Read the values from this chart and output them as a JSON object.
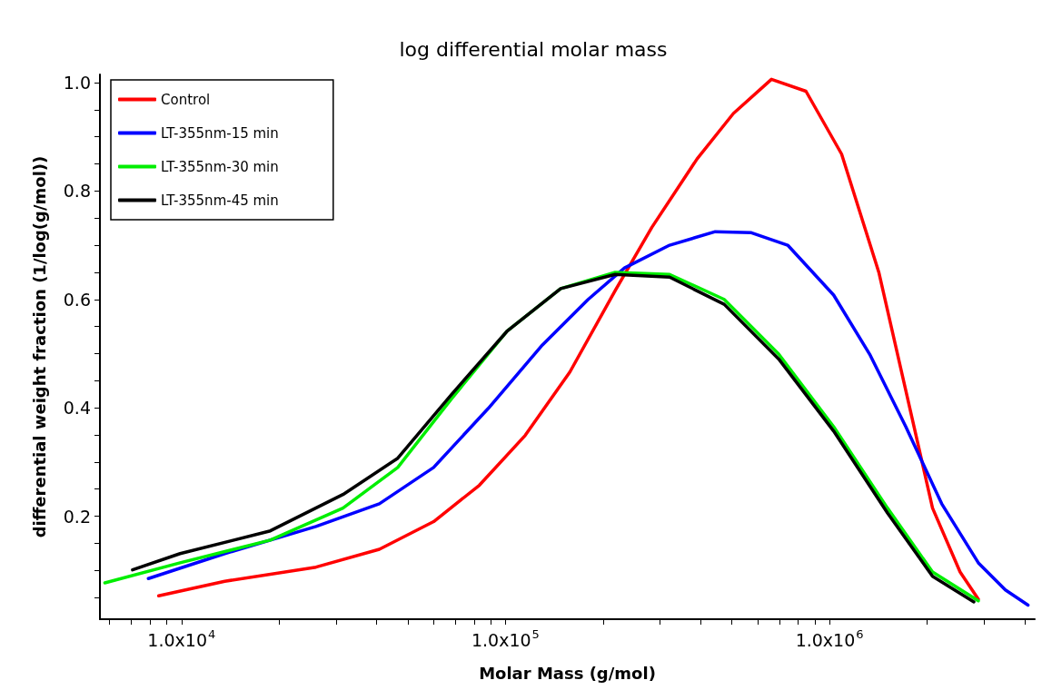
{
  "chart_data": {
    "type": "line",
    "title": "log differential molar mass",
    "xlabel": "Molar Mass (g/mol)",
    "ylabel": "differential weight fraction (1/log(g/mol))",
    "log": "x",
    "grid": false,
    "legend": "top left",
    "marker": "none",
    "line_style": "solid",
    "xlim": [
      5600,
      4300000
    ],
    "ylim": [
      0.01,
      1.015
    ],
    "xticks": [
      {
        "value": 6000,
        "label": null
      },
      {
        "value": 7000,
        "label": null
      },
      {
        "value": 8000,
        "label": null
      },
      {
        "value": 9000,
        "label": null
      },
      {
        "value": 10000,
        "label": "1.0x10$^{4}$"
      },
      {
        "value": 20000,
        "label": null
      },
      {
        "value": 30000,
        "label": null
      },
      {
        "value": 40000,
        "label": null
      },
      {
        "value": 50000,
        "label": null
      },
      {
        "value": 60000,
        "label": null
      },
      {
        "value": 70000,
        "label": null
      },
      {
        "value": 80000,
        "label": null
      },
      {
        "value": 90000,
        "label": null
      },
      {
        "value": 100000,
        "label": "1.0x10$^{5}$"
      },
      {
        "value": 200000,
        "label": null
      },
      {
        "value": 300000,
        "label": null
      },
      {
        "value": 400000,
        "label": null
      },
      {
        "value": 500000,
        "label": null
      },
      {
        "value": 600000,
        "label": null
      },
      {
        "value": 700000,
        "label": null
      },
      {
        "value": 800000,
        "label": null
      },
      {
        "value": 900000,
        "label": null
      },
      {
        "value": 1000000,
        "label": "1.0x10$^{6}$"
      },
      {
        "value": 2000000,
        "label": null
      },
      {
        "value": 3000000,
        "label": null
      },
      {
        "value": 4000000,
        "label": null
      }
    ],
    "yticks": [
      {
        "value": 0.05,
        "label": null
      },
      {
        "value": 0.1,
        "label": null
      },
      {
        "value": 0.15,
        "label": null
      },
      0.2,
      {
        "value": 0.25,
        "label": null
      },
      {
        "value": 0.3,
        "label": null
      },
      {
        "value": 0.35,
        "label": null
      },
      0.4,
      {
        "value": 0.45,
        "label": null
      },
      {
        "value": 0.5,
        "label": null
      },
      {
        "value": 0.55,
        "label": null
      },
      0.6,
      {
        "value": 0.65,
        "label": null
      },
      {
        "value": 0.7,
        "label": null
      },
      {
        "value": 0.75,
        "label": null
      },
      0.8,
      {
        "value": 0.85,
        "label": null
      },
      {
        "value": 0.9,
        "label": null
      },
      {
        "value": 0.95,
        "label": null
      },
      {
        "value": 1,
        "label": "1.0"
      }
    ],
    "series": [
      {
        "name": "Control",
        "color": "#ff0000",
        "x": [
          8500,
          13600,
          26000,
          40800,
          60000,
          83000,
          115000,
          158000,
          218000,
          283000,
          390000,
          505000,
          662000,
          846000,
          1090000,
          1420000,
          1720000,
          2080000,
          2530000,
          2880000
        ],
        "values": [
          0.053,
          0.08,
          0.106,
          0.139,
          0.19,
          0.257,
          0.349,
          0.466,
          0.616,
          0.733,
          0.859,
          0.943,
          1.006,
          0.984,
          0.868,
          0.65,
          0.432,
          0.215,
          0.097,
          0.047
        ]
      },
      {
        "name": "LT-355nm-15 min",
        "color": "#0000ff",
        "x": [
          7900,
          13600,
          26000,
          40800,
          60000,
          88500,
          130000,
          180000,
          233000,
          321000,
          444000,
          574000,
          743000,
          1030000,
          1330000,
          1720000,
          2220000,
          2880000,
          3490000,
          4100000
        ],
        "values": [
          0.085,
          0.131,
          0.181,
          0.223,
          0.29,
          0.399,
          0.516,
          0.6,
          0.658,
          0.7,
          0.725,
          0.723,
          0.7,
          0.608,
          0.499,
          0.365,
          0.223,
          0.114,
          0.064,
          0.036
        ]
      },
      {
        "name": "LT-355nm-30 min",
        "color": "#00ee00",
        "x": [
          5800,
          9900,
          18800,
          31500,
          46500,
          68000,
          101000,
          148000,
          218000,
          321000,
          473000,
          697000,
          1030000,
          1510000,
          2080000,
          2880000
        ],
        "values": [
          0.077,
          0.114,
          0.156,
          0.215,
          0.29,
          0.416,
          0.541,
          0.62,
          0.65,
          0.646,
          0.6,
          0.499,
          0.365,
          0.215,
          0.097,
          0.044
        ]
      },
      {
        "name": "LT-355nm-45 min",
        "color": "#000000",
        "x": [
          7060,
          9900,
          18800,
          31500,
          46500,
          68000,
          101000,
          148000,
          218000,
          321000,
          473000,
          697000,
          1030000,
          1510000,
          2080000,
          2790000
        ],
        "values": [
          0.101,
          0.131,
          0.173,
          0.24,
          0.307,
          0.424,
          0.541,
          0.62,
          0.646,
          0.641,
          0.591,
          0.49,
          0.357,
          0.206,
          0.089,
          0.042
        ]
      }
    ]
  }
}
